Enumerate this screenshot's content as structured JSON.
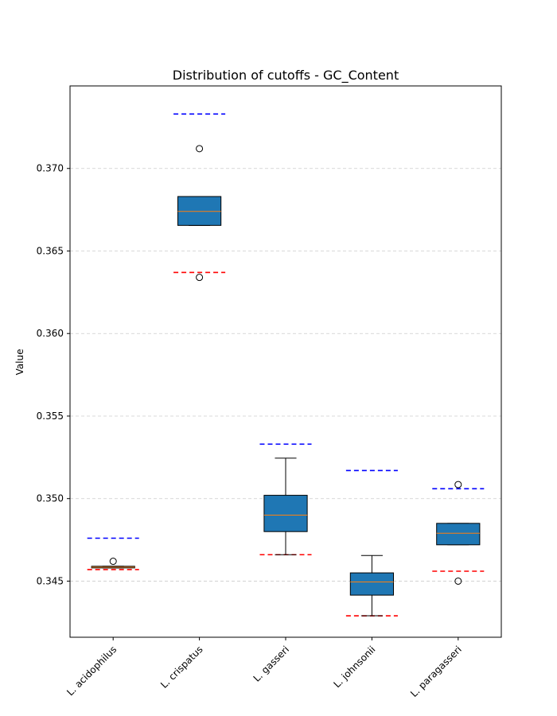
{
  "chart_data": {
    "type": "boxplot",
    "title": "Distribution of cutoffs - GC_Content",
    "xlabel": "",
    "ylabel": "Value",
    "ylim": [
      0.3416,
      0.375
    ],
    "yticks": [
      0.345,
      0.35,
      0.355,
      0.36,
      0.365,
      0.37
    ],
    "ytick_labels": [
      "0.345",
      "0.350",
      "0.355",
      "0.360",
      "0.365",
      "0.370"
    ],
    "grid": "y-dashed",
    "categories": [
      "L. acidophilus",
      "L. crispatus",
      "L. gasseri",
      "L. johnsonii",
      "L. paragasseri"
    ],
    "boxes": [
      {
        "whisker_low": 345.8,
        "q1": 345.8,
        "median": 345.85,
        "q3": 345.9,
        "whisker_high": 345.9,
        "outliers": [
          346.2
        ],
        "upper_cutoff": 347.6,
        "lower_cutoff": 345.7
      },
      {
        "whisker_low": 366.55,
        "q1": 366.55,
        "median": 367.4,
        "q3": 368.3,
        "whisker_high": 368.3,
        "outliers": [
          371.2,
          363.4
        ],
        "upper_cutoff": 373.3,
        "lower_cutoff": 363.7
      },
      {
        "whisker_low": 346.6,
        "q1": 348.0,
        "median": 349.0,
        "q3": 350.2,
        "whisker_high": 352.45,
        "outliers": [],
        "upper_cutoff": 353.3,
        "lower_cutoff": 346.6
      },
      {
        "whisker_low": 342.9,
        "q1": 344.15,
        "median": 344.95,
        "q3": 345.5,
        "whisker_high": 346.55,
        "outliers": [],
        "upper_cutoff": 351.7,
        "lower_cutoff": 342.9
      },
      {
        "whisker_low": 347.2,
        "q1": 347.2,
        "median": 347.9,
        "q3": 348.5,
        "whisker_high": 348.5,
        "outliers": [
          350.85,
          345.0
        ],
        "upper_cutoff": 350.6,
        "lower_cutoff": 345.6
      }
    ],
    "value_scale": 0.001,
    "colors": {
      "box_fill": "#1f77b4",
      "median": "#ff7f0e",
      "upper_cutoff": "#0000ff",
      "lower_cutoff": "#ff0000",
      "grid": "#cccccc"
    }
  }
}
